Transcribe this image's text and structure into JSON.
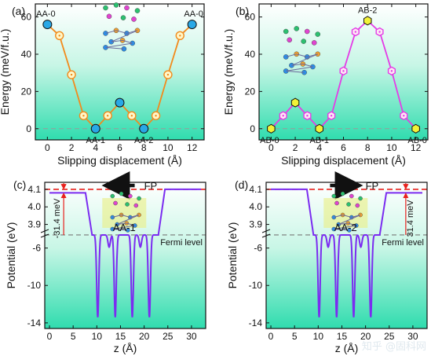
{
  "colors": {
    "orange": "#f28a1c",
    "magenta": "#e43ce6",
    "purple": "#7b2cf0",
    "red": "#e8201c",
    "teal_top": "#ffffff",
    "teal_bottom": "#33e0b2",
    "blue_marker": "#29a8e6",
    "yellow_marker": "#f2f238"
  },
  "chart_data": [
    {
      "panel_label": "(a)",
      "type": "line",
      "xlabel": "Slipping displacement (Å)",
      "ylabel": "Energy (meV/f.u.)",
      "xlim": [
        -1,
        13
      ],
      "ylim": [
        -6,
        67
      ],
      "xticks": [
        0,
        2,
        4,
        6,
        8,
        10,
        12
      ],
      "yticks": [
        0,
        20,
        40,
        60
      ],
      "x": [
        0,
        1,
        2,
        3,
        4,
        5,
        6,
        7,
        8,
        9,
        10,
        11,
        12
      ],
      "y": [
        56,
        50,
        29,
        7,
        0,
        7,
        14,
        7,
        0,
        7,
        29,
        50,
        56
      ],
      "labels": [
        {
          "x": 0,
          "y": 56,
          "text": "AA-0"
        },
        {
          "x": 4,
          "y": 0,
          "text": "AA-1"
        },
        {
          "x": 8,
          "y": 0,
          "text": "AA-2"
        },
        {
          "x": 12,
          "y": 56,
          "text": "AA-0"
        }
      ],
      "special_points": [
        0,
        4,
        6,
        8,
        12
      ]
    },
    {
      "panel_label": "(b)",
      "type": "line",
      "xlabel": "Slipping displacement (Å)",
      "ylabel": "Energy (meV/f.u.)",
      "xlim": [
        -1,
        13
      ],
      "ylim": [
        -6,
        67
      ],
      "xticks": [
        0,
        2,
        4,
        6,
        8,
        10,
        12
      ],
      "yticks": [
        0,
        20,
        40,
        60
      ],
      "x": [
        0,
        1,
        2,
        3,
        4,
        5,
        6,
        7,
        8,
        9,
        10,
        11,
        12
      ],
      "y": [
        0,
        7,
        14,
        7,
        0,
        7,
        31,
        52,
        58,
        52,
        31,
        7,
        0
      ],
      "labels": [
        {
          "x": 0,
          "y": 0,
          "text": "AB-0"
        },
        {
          "x": 4,
          "y": 0,
          "text": "AB-1"
        },
        {
          "x": 8,
          "y": 58,
          "text": "AB-2"
        },
        {
          "x": 12,
          "y": 0,
          "text": "AB-0"
        }
      ],
      "special_points": [
        0,
        2,
        4,
        8,
        12
      ]
    },
    {
      "panel_label": "(c)",
      "type": "line",
      "xlabel": "z (Å)",
      "ylabel": "Potential (eV)",
      "xlim": [
        -1,
        33
      ],
      "xticks": [
        0,
        5,
        10,
        15,
        20,
        25,
        30
      ],
      "upper_yticks": [
        3.9,
        4.0,
        4.1
      ],
      "lower_yticks": [
        -14,
        -10,
        -6
      ],
      "vacuum_left": 4.08,
      "vacuum_right": 4.1,
      "fp_value": 4.1,
      "fermi_label": "Fermi level",
      "fp_label": "FP",
      "dipole_label": "-31.4 meV",
      "structure_label": "AA-1",
      "arrow_direction": "left",
      "wells": [
        {
          "z": 10.2,
          "depth": -13.4
        },
        {
          "z": 12.6,
          "depth": -5.9
        },
        {
          "z": 13.9,
          "depth": -13.4
        },
        {
          "z": 17.5,
          "depth": -13.4
        },
        {
          "z": 19.2,
          "depth": -5.9
        },
        {
          "z": 21.1,
          "depth": -13.4
        }
      ]
    },
    {
      "panel_label": "(d)",
      "type": "line",
      "xlabel": "z (Å)",
      "ylabel": "Potential (eV)",
      "xlim": [
        -1,
        33
      ],
      "xticks": [
        0,
        5,
        10,
        15,
        20,
        25,
        30
      ],
      "upper_yticks": [
        3.9,
        4.0,
        4.1
      ],
      "lower_yticks": [
        -14,
        -10,
        -6
      ],
      "vacuum_left": 4.1,
      "vacuum_right": 4.08,
      "fp_value": 4.1,
      "fermi_label": "Fermi level",
      "fp_label": "FP",
      "dipole_label": "31.4 meV",
      "structure_label": "AA-2",
      "arrow_direction": "right",
      "wells": [
        {
          "z": 10.2,
          "depth": -13.4
        },
        {
          "z": 12.1,
          "depth": -5.9
        },
        {
          "z": 13.9,
          "depth": -13.4
        },
        {
          "z": 17.5,
          "depth": -13.4
        },
        {
          "z": 19.0,
          "depth": -5.9
        },
        {
          "z": 21.1,
          "depth": -13.4
        }
      ]
    }
  ],
  "watermark": "知乎 @固科网"
}
